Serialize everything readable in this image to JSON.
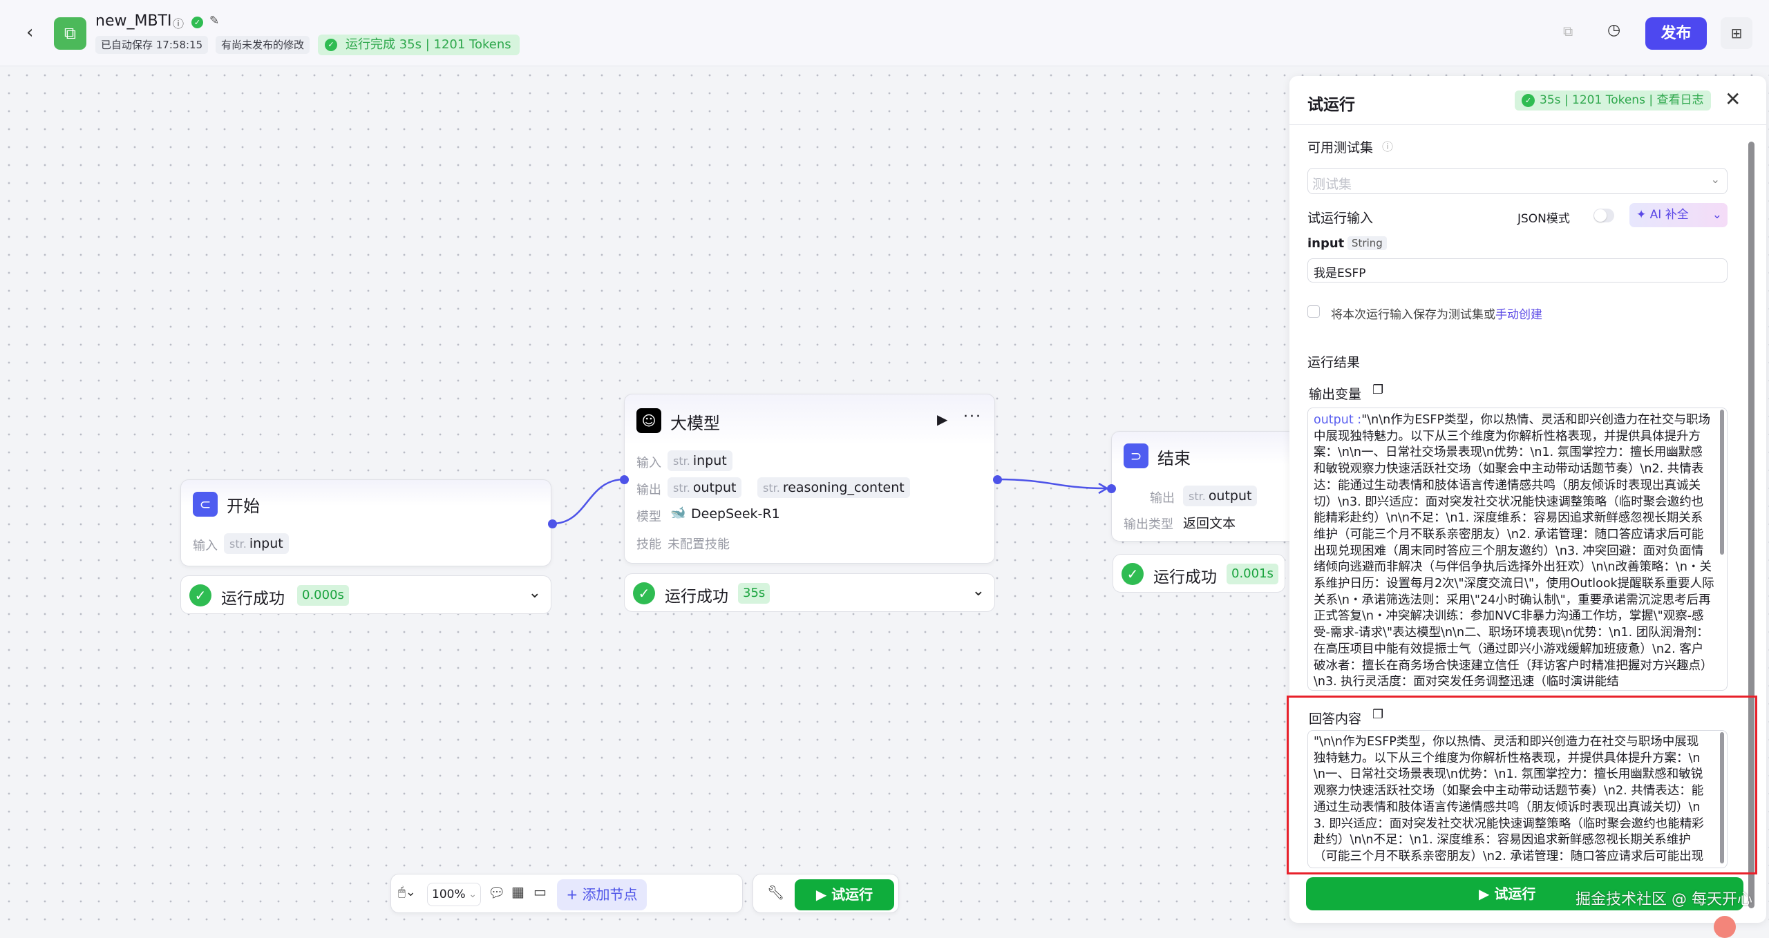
{
  "header": {
    "title": "new_MBTI",
    "autosave": "已自动保存 17:58:15",
    "unpublished": "有尚未发布的修改",
    "run_status": "运行完成 35s",
    "run_tokens": "1201 Tokens",
    "publish_label": "发布"
  },
  "nodes": {
    "start": {
      "title": "开始",
      "input_label": "输入",
      "type": "str.",
      "input_var": "input",
      "status": "运行成功",
      "time": "0.000s"
    },
    "llm": {
      "title": "大模型",
      "input_label": "输入",
      "output_label": "输出",
      "model_label": "模型",
      "skill_label": "技能",
      "type": "str.",
      "input_var": "input",
      "output_var": "output",
      "output_var2": "reasoning_content",
      "model": "DeepSeek-R1",
      "skill": "未配置技能",
      "status": "运行成功",
      "time": "35s"
    },
    "end": {
      "title": "结束",
      "output_label": "输出",
      "output_type_label": "输出类型",
      "type": "str.",
      "output_var": "output",
      "output_type": "返回文本",
      "status": "运行成功",
      "time": "0.001s"
    }
  },
  "toolbar": {
    "zoom": "100%",
    "add_node": "添加节点",
    "test_run": "试运行"
  },
  "panel": {
    "title": "试运行",
    "time": "35s",
    "tokens": "1201 Tokens",
    "view_log": "查看日志",
    "testset_label": "可用测试集",
    "testset_placeholder": "测试集",
    "input_section": "试运行输入",
    "json_mode": "JSON模式",
    "json_mode_on": false,
    "ai_fill": "AI 补全",
    "input_name": "input",
    "input_type": "String",
    "input_value": "我是ESFP",
    "save_text": "将本次运行输入保存为测试集或",
    "save_link": "手动创建",
    "result_title": "运行结果",
    "output_var_title": "输出变量",
    "output_key": "output :",
    "output_value": "\"\\n\\n作为ESFP类型，你以热情、灵活和即兴创造力在社交与职场中展现独特魅力。以下从三个维度为你解析性格表现，并提供具体提升方案：\\n\\n一、日常社交场景表现\\n优势：\\n1. 氛围掌控力：擅长用幽默感和敏锐观察力快速活跃社交场（如聚会中主动带动话题节奏）\\n2. 共情表达：能通过生动表情和肢体语言传递情感共鸣（朋友倾诉时表现出真诚关切）\\n3. 即兴适应：面对突发社交状况能快速调整策略（临时聚会邀约也能精彩赴约）\\n\\n不足：\\n1. 深度维系：容易因追求新鲜感忽视长期关系维护（可能三个月不联系亲密朋友）\\n2. 承诺管理：随口答应请求后可能出现兑现困难（周末同时答应三个朋友邀约）\\n3. 冲突回避：面对负面情绪倾向逃避而非解决（与伴侣争执后选择外出狂欢）\\n\\n改善策略：\\n・关系维护日历：设置每月2次\\\"深度交流日\\\"，使用Outlook提醒联系重要人际关系\\n・承诺筛选法则：采用\\\"24小时确认制\\\"，重要承诺需沉淀思考后再正式答复\\n・冲突解决训练：参加NVC非暴力沟通工作坊，掌握\\\"观察-感受-需求-请求\\\"表达模型\\n\\n二、职场环境表现\\n优势：\\n1. 团队润滑剂：在高压项目中能有效提振士气（通过即兴小游戏缓解加班疲惫）\\n2. 客户破冰者：擅长在商务场合快速建立信任（拜访客户时精准把握对方兴趣点）\\n3. 执行灵活度：面对突发任务调整迅速（临时演讲能结",
    "answer_title": "回答内容",
    "answer_value": "\"\\n\\n作为ESFP类型，你以热情、灵活和即兴创造力在社交与职场中展现独特魅力。以下从三个维度为你解析性格表现，并提供具体提升方案：\\n\\n一、日常社交场景表现\\n优势：\\n1. 氛围掌控力：擅长用幽默感和敏锐观察力快速活跃社交场（如聚会中主动带动话题节奏）\\n2. 共情表达：能通过生动表情和肢体语言传递情感共鸣（朋友倾诉时表现出真诚关切）\\n3. 即兴适应：面对突发社交状况能快速调整策略（临时聚会邀约也能精彩赴约）\\n\\n不足：\\n1. 深度维系：容易因追求新鲜感忽视长期关系维护（可能三个月不联系亲密朋友）\\n2. 承诺管理：随口答应请求后可能出现",
    "run_button": "试运行"
  },
  "watermark": "掘金技术社区 @ 每天开心",
  "colors": {
    "accent": "#4d53e8",
    "success": "#2fbc52",
    "run_button": "#0fad3c",
    "highlight": "#e8212b"
  }
}
